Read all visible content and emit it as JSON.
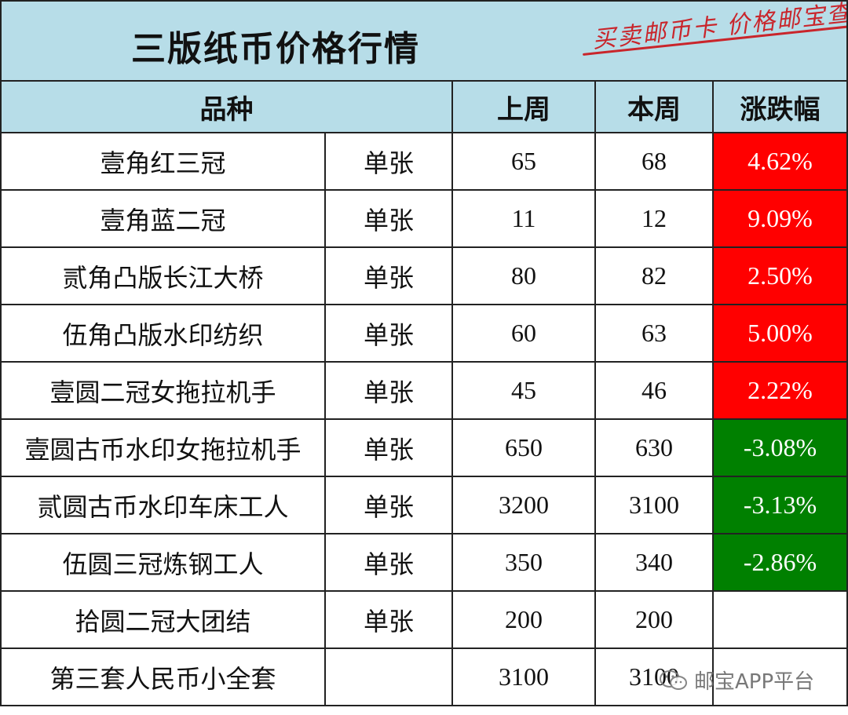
{
  "title": "三版纸币价格行情",
  "slogan": "买卖邮币卡 价格邮宝查",
  "header": {
    "variety": "品种",
    "last_week": "上周",
    "this_week": "本周",
    "change": "涨跌幅"
  },
  "colors": {
    "header_bg": "#b7dde8",
    "rise": "#ff0000",
    "fall": "#008000",
    "slogan": "#c9252b"
  },
  "rows": [
    {
      "name": "壹角红三冠",
      "unit": "单张",
      "last": "65",
      "this": "68",
      "change": "4.62%",
      "direction": "up"
    },
    {
      "name": "壹角蓝二冠",
      "unit": "单张",
      "last": "11",
      "this": "12",
      "change": "9.09%",
      "direction": "up"
    },
    {
      "name": "贰角凸版长江大桥",
      "unit": "单张",
      "last": "80",
      "this": "82",
      "change": "2.50%",
      "direction": "up"
    },
    {
      "name": "伍角凸版水印纺织",
      "unit": "单张",
      "last": "60",
      "this": "63",
      "change": "5.00%",
      "direction": "up"
    },
    {
      "name": "壹圆二冠女拖拉机手",
      "unit": "单张",
      "last": "45",
      "this": "46",
      "change": "2.22%",
      "direction": "up"
    },
    {
      "name": "壹圆古币水印女拖拉机手",
      "unit": "单张",
      "last": "650",
      "this": "630",
      "change": "-3.08%",
      "direction": "down"
    },
    {
      "name": "贰圆古币水印车床工人",
      "unit": "单张",
      "last": "3200",
      "this": "3100",
      "change": "-3.13%",
      "direction": "down"
    },
    {
      "name": "伍圆三冠炼钢工人",
      "unit": "单张",
      "last": "350",
      "this": "340",
      "change": "-2.86%",
      "direction": "down"
    },
    {
      "name": "拾圆二冠大团结",
      "unit": "单张",
      "last": "200",
      "this": "200",
      "change": "",
      "direction": "none"
    },
    {
      "name": "第三套人民币小全套",
      "unit": "",
      "last": "3100",
      "this": "3100",
      "change": "",
      "direction": "none"
    }
  ],
  "watermark": {
    "icon": "wechat-icon",
    "text": "邮宝APP平台"
  }
}
